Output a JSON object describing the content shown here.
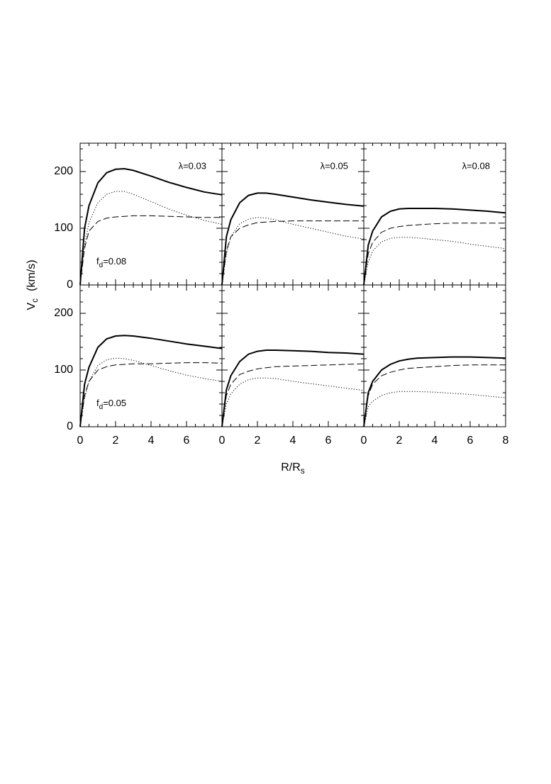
{
  "xlabel": [
    "R/R",
    "s"
  ],
  "ylabel": [
    "V",
    "c",
    "(km/s)"
  ],
  "xminor_step": 0.5,
  "yminor_step": 20,
  "chart_data": [
    {
      "type": "line",
      "label": "λ=0.03",
      "label2": [
        "f",
        "d",
        "=0.08"
      ],
      "x": [
        0,
        0.25,
        0.5,
        1,
        1.5,
        2,
        2.5,
        3,
        4,
        5,
        6,
        7,
        8
      ],
      "xlim": [
        0,
        8
      ],
      "ylim": [
        0,
        250
      ],
      "xticks": [
        0,
        2,
        4,
        6,
        8
      ],
      "yticks": [
        0,
        100,
        200
      ],
      "show_xtick_labels": false,
      "show_ytick_labels": true,
      "series": [
        {
          "color": "#000000",
          "dash": "solid",
          "values": [
            0,
            100,
            140,
            180,
            198,
            204,
            205,
            202,
            192,
            181,
            172,
            164,
            159
          ]
        },
        {
          "color": "#000000",
          "dash": "dotted",
          "values": [
            0,
            70,
            110,
            145,
            160,
            165,
            165,
            160,
            147,
            134,
            123,
            114,
            107
          ]
        },
        {
          "color": "#000000",
          "dash": "dashed",
          "values": [
            0,
            65,
            95,
            112,
            118,
            120,
            121,
            122,
            122,
            121,
            120,
            119,
            119
          ]
        }
      ]
    },
    {
      "type": "line",
      "label": "λ=0.05",
      "x": [
        0,
        0.25,
        0.5,
        1,
        1.5,
        2,
        2.5,
        3,
        4,
        5,
        6,
        7,
        8
      ],
      "xlim": [
        0,
        8
      ],
      "ylim": [
        0,
        250
      ],
      "xticks": [
        0,
        2,
        4,
        6,
        8
      ],
      "yticks": [
        0,
        100,
        200
      ],
      "show_xtick_labels": false,
      "show_ytick_labels": false,
      "series": [
        {
          "color": "#000000",
          "dash": "solid",
          "values": [
            0,
            85,
            115,
            145,
            158,
            162,
            162,
            160,
            155,
            150,
            146,
            142,
            139
          ]
        },
        {
          "color": "#000000",
          "dash": "dotted",
          "values": [
            0,
            55,
            85,
            108,
            116,
            119,
            118,
            115,
            107,
            100,
            93,
            86,
            81
          ]
        },
        {
          "color": "#000000",
          "dash": "dashed",
          "values": [
            0,
            60,
            85,
            100,
            106,
            110,
            111,
            112,
            113,
            113,
            113,
            113,
            113
          ]
        }
      ]
    },
    {
      "type": "line",
      "label": "λ=0.08",
      "x": [
        0,
        0.25,
        0.5,
        1,
        1.5,
        2,
        2.5,
        3,
        4,
        5,
        6,
        7,
        8
      ],
      "xlim": [
        0,
        8
      ],
      "ylim": [
        0,
        250
      ],
      "xticks": [
        0,
        2,
        4,
        6,
        8
      ],
      "yticks": [
        0,
        100,
        200
      ],
      "show_xtick_labels": false,
      "show_ytick_labels": false,
      "series": [
        {
          "color": "#000000",
          "dash": "solid",
          "values": [
            0,
            70,
            95,
            120,
            130,
            134,
            135,
            135,
            135,
            134,
            132,
            130,
            127
          ]
        },
        {
          "color": "#000000",
          "dash": "dotted",
          "values": [
            0,
            40,
            60,
            76,
            82,
            84,
            84,
            83,
            80,
            77,
            72,
            68,
            64
          ]
        },
        {
          "color": "#000000",
          "dash": "dashed",
          "values": [
            0,
            55,
            75,
            93,
            100,
            103,
            105,
            106,
            108,
            109,
            109,
            109,
            109
          ]
        }
      ]
    },
    {
      "type": "line",
      "label2": [
        "f",
        "d",
        "=0.05"
      ],
      "x": [
        0,
        0.25,
        0.5,
        1,
        1.5,
        2,
        2.5,
        3,
        4,
        5,
        6,
        7,
        8
      ],
      "xlim": [
        0,
        8
      ],
      "ylim": [
        0,
        250
      ],
      "xticks": [
        0,
        2,
        4,
        6
      ],
      "yticks": [
        0,
        100,
        200
      ],
      "show_xtick_labels": true,
      "show_ytick_labels": true,
      "series": [
        {
          "color": "#000000",
          "dash": "solid",
          "values": [
            0,
            75,
            105,
            140,
            155,
            160,
            161,
            160,
            156,
            151,
            146,
            142,
            138
          ]
        },
        {
          "color": "#000000",
          "dash": "dotted",
          "values": [
            0,
            50,
            80,
            108,
            118,
            121,
            120,
            117,
            108,
            99,
            91,
            85,
            80
          ]
        },
        {
          "color": "#000000",
          "dash": "dashed",
          "values": [
            0,
            55,
            80,
            100,
            106,
            109,
            110,
            111,
            111,
            112,
            113,
            113,
            112
          ]
        }
      ]
    },
    {
      "type": "line",
      "x": [
        0,
        0.25,
        0.5,
        1,
        1.5,
        2,
        2.5,
        3,
        4,
        5,
        6,
        7,
        8
      ],
      "xlim": [
        0,
        8
      ],
      "ylim": [
        0,
        250
      ],
      "xticks": [
        0,
        2,
        4,
        6
      ],
      "yticks": [
        0,
        100,
        200
      ],
      "show_xtick_labels": true,
      "show_ytick_labels": false,
      "series": [
        {
          "color": "#000000",
          "dash": "solid",
          "values": [
            0,
            65,
            90,
            115,
            128,
            133,
            135,
            135,
            134,
            133,
            131,
            130,
            128
          ]
        },
        {
          "color": "#000000",
          "dash": "dotted",
          "values": [
            0,
            40,
            58,
            75,
            83,
            86,
            86,
            85,
            80,
            76,
            72,
            68,
            64
          ]
        },
        {
          "color": "#000000",
          "dash": "dashed",
          "values": [
            0,
            55,
            75,
            92,
            98,
            102,
            104,
            106,
            107,
            108,
            109,
            110,
            111
          ]
        }
      ]
    },
    {
      "type": "line",
      "x": [
        0,
        0.25,
        0.5,
        1,
        1.5,
        2,
        2.5,
        3,
        4,
        5,
        6,
        7,
        8
      ],
      "xlim": [
        0,
        8
      ],
      "ylim": [
        0,
        250
      ],
      "xticks": [
        0,
        2,
        4,
        6,
        8
      ],
      "yticks": [
        0,
        100,
        200
      ],
      "show_xtick_labels": true,
      "show_ytick_labels": false,
      "series": [
        {
          "color": "#000000",
          "dash": "solid",
          "values": [
            0,
            60,
            80,
            100,
            110,
            116,
            119,
            121,
            122,
            123,
            123,
            122,
            121
          ]
        },
        {
          "color": "#000000",
          "dash": "dotted",
          "values": [
            0,
            35,
            45,
            55,
            60,
            62,
            62,
            62,
            61,
            59,
            57,
            54,
            51
          ]
        },
        {
          "color": "#000000",
          "dash": "dashed",
          "values": [
            0,
            55,
            75,
            90,
            96,
            100,
            103,
            104,
            106,
            108,
            109,
            109,
            109
          ]
        }
      ]
    }
  ]
}
